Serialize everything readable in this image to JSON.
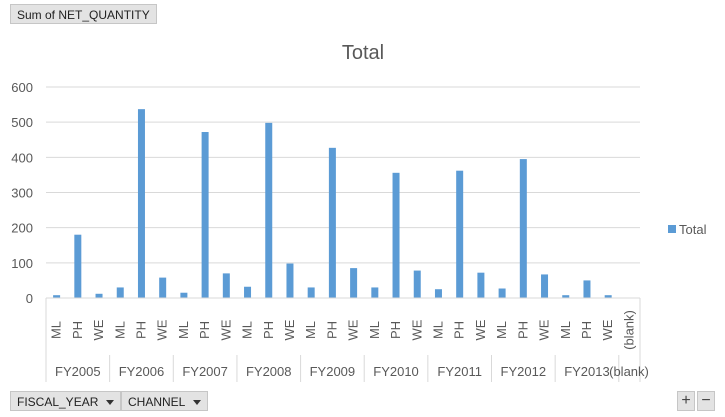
{
  "value_field": "Sum of NET_QUANTITY",
  "row_fields": [
    "FISCAL_YEAR",
    "CHANNEL"
  ],
  "zoom_buttons": {
    "plus": "+",
    "minus": "−"
  },
  "chart_data": {
    "type": "bar",
    "title": "Total",
    "xlabel": "",
    "ylabel": "",
    "ylim": [
      0,
      600
    ],
    "yticks": [
      0,
      100,
      200,
      300,
      400,
      500,
      600
    ],
    "grid": true,
    "legend_position": "right",
    "series": [
      {
        "name": "Total",
        "color": "#5b9bd5"
      }
    ],
    "groups": [
      {
        "label": "FY2005",
        "items": [
          {
            "category": "ML",
            "value": 8
          },
          {
            "category": "PH",
            "value": 180
          },
          {
            "category": "WE",
            "value": 12
          }
        ]
      },
      {
        "label": "FY2006",
        "items": [
          {
            "category": "ML",
            "value": 30
          },
          {
            "category": "PH",
            "value": 537
          },
          {
            "category": "WE",
            "value": 58
          }
        ]
      },
      {
        "label": "FY2007",
        "items": [
          {
            "category": "ML",
            "value": 15
          },
          {
            "category": "PH",
            "value": 472
          },
          {
            "category": "WE",
            "value": 70
          }
        ]
      },
      {
        "label": "FY2008",
        "items": [
          {
            "category": "ML",
            "value": 32
          },
          {
            "category": "PH",
            "value": 498
          },
          {
            "category": "WE",
            "value": 98
          }
        ]
      },
      {
        "label": "FY2009",
        "items": [
          {
            "category": "ML",
            "value": 30
          },
          {
            "category": "PH",
            "value": 427
          },
          {
            "category": "WE",
            "value": 85
          }
        ]
      },
      {
        "label": "FY2010",
        "items": [
          {
            "category": "ML",
            "value": 30
          },
          {
            "category": "PH",
            "value": 356
          },
          {
            "category": "WE",
            "value": 78
          }
        ]
      },
      {
        "label": "FY2011",
        "items": [
          {
            "category": "ML",
            "value": 25
          },
          {
            "category": "PH",
            "value": 362
          },
          {
            "category": "WE",
            "value": 72
          }
        ]
      },
      {
        "label": "FY2012",
        "items": [
          {
            "category": "ML",
            "value": 27
          },
          {
            "category": "PH",
            "value": 395
          },
          {
            "category": "WE",
            "value": 67
          }
        ]
      },
      {
        "label": "FY2013",
        "items": [
          {
            "category": "ML",
            "value": 8
          },
          {
            "category": "PH",
            "value": 50
          },
          {
            "category": "WE",
            "value": 8
          }
        ]
      },
      {
        "label": "(blank)",
        "items": [
          {
            "category": "(blank)",
            "value": 0
          }
        ]
      }
    ]
  }
}
